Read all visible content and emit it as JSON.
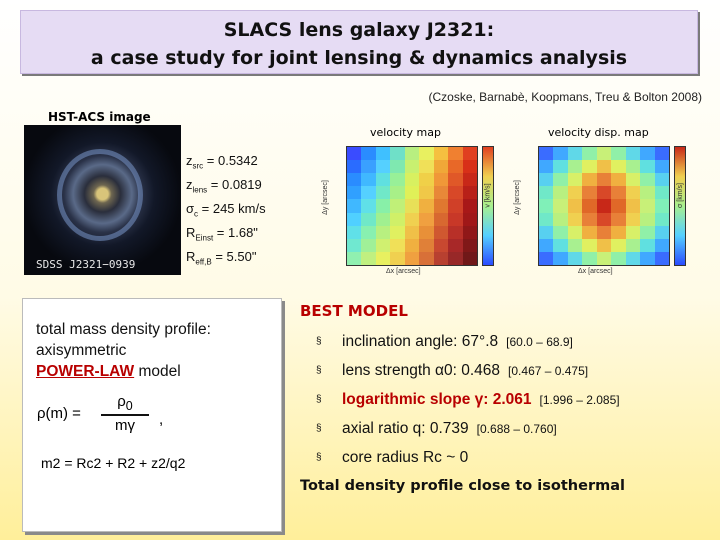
{
  "title": {
    "line1": "SLACS lens galaxy J2321:",
    "line2": "a case study for joint lensing & dynamics analysis"
  },
  "citation": "(Czoske, Barnabè, Koopmans, Treu & Bolton 2008)",
  "hst_label": "HST-ACS image",
  "galaxy_caption": "SDSS  J2321−0939",
  "params": {
    "z_src": "z",
    "z_src_sub": "src",
    "z_src_val": " = 0.5342",
    "z_lens": "z",
    "z_lens_sub": "lens",
    "z_lens_val": " = 0.0819",
    "sigma": "σ",
    "sigma_sub": "c",
    "sigma_val": "  = 245 km/s",
    "reinst": "R",
    "reinst_sub": "Einst",
    "reinst_val": " = 1.68\"",
    "reff": "R",
    "reff_sub": "eff,B",
    "reff_val": " = 5.50\""
  },
  "maps": {
    "velocity_title": "velocity map",
    "dispersion_title": "velocity disp. map",
    "x_axis_label": "Δx [arcsec]",
    "y_axis_label": "Δy [arcsec]",
    "cbar_label_velocity": "v [km/s]",
    "cbar_label_dispersion": "σ [km/s]"
  },
  "profile": {
    "line1": "total mass density profile:",
    "line2": "axisymmetric",
    "power_law": "POWER-LAW",
    "model": " model",
    "rho_m": "ρ(m) =",
    "rho0": "ρ",
    "rho0_sub": "0",
    "m_gamma": "mγ",
    "comma": ",",
    "m2_eq": "m2 = Rc2 + R2 + z2/q2"
  },
  "best_model": {
    "title": "BEST MODEL",
    "items": [
      {
        "label": "inclination angle: 67°.8",
        "range": "[60.0 – 68.9]"
      },
      {
        "label": "lens strength α0: 0.468",
        "range": "[0.467 – 0.475]"
      },
      {
        "label": "logarithmic slope γ: 2.061",
        "range": "[1.996 – 2.085]"
      },
      {
        "label": "axial ratio q: 0.739",
        "range": "[0.688 – 0.760]"
      },
      {
        "label": "core radius Rc ~ 0",
        "range": ""
      }
    ],
    "bullet": "§"
  },
  "conclusion": "Total density profile close to isothermal",
  "colors": {
    "accent_red": "#b80000",
    "title_box": "#e6dcf4"
  },
  "velocity_grid": [
    [
      "#3a4cff",
      "#2a8cff",
      "#3fc0ff",
      "#6fe0c8",
      "#b8ef80",
      "#e8f060",
      "#f5c040",
      "#f08030",
      "#e04020"
    ],
    [
      "#2a6cff",
      "#3aa0ff",
      "#55d0ff",
      "#7fe8b0",
      "#c8f070",
      "#f0e058",
      "#f0a838",
      "#e86828",
      "#d83018"
    ],
    [
      "#2a8cff",
      "#40b8ff",
      "#60e0e0",
      "#98f098",
      "#d8f060",
      "#f0d048",
      "#f09838",
      "#e05828",
      "#c82818"
    ],
    [
      "#30a0ff",
      "#55d0ff",
      "#70e8c8",
      "#a8f088",
      "#e0f058",
      "#f0c848",
      "#e88838",
      "#d84828",
      "#b82018"
    ],
    [
      "#40b8ff",
      "#60e0e8",
      "#88f0a8",
      "#c0f078",
      "#e8e058",
      "#f0b040",
      "#e07830",
      "#d04028",
      "#a81818"
    ],
    [
      "#50d0ff",
      "#70e8c8",
      "#a0f090",
      "#d0f068",
      "#f0d050",
      "#f0a040",
      "#d86830",
      "#c83828",
      "#a01818"
    ],
    [
      "#60e0e8",
      "#88f0b0",
      "#b8f080",
      "#e0f060",
      "#f0c048",
      "#e89038",
      "#d05830",
      "#b83028",
      "#901818"
    ],
    [
      "#70e8d0",
      "#a0f098",
      "#d0f070",
      "#f0e058",
      "#f0b040",
      "#e08038",
      "#c84830",
      "#a82828",
      "#801818"
    ],
    [
      "#90f0b0",
      "#c0f080",
      "#e8f060",
      "#f0d050",
      "#f0a040",
      "#d87038",
      "#b84030",
      "#982828",
      "#701818"
    ]
  ],
  "dispersion_grid": [
    [
      "#3a6cff",
      "#40a8ff",
      "#60d8e8",
      "#90f0a8",
      "#c8f078",
      "#90f0a8",
      "#60d8e8",
      "#40a8ff",
      "#3a6cff"
    ],
    [
      "#40a8ff",
      "#60e0e0",
      "#a8f090",
      "#e0f060",
      "#f0c048",
      "#e0f060",
      "#a8f090",
      "#60e0e0",
      "#40a8ff"
    ],
    [
      "#58d0f0",
      "#90f0a8",
      "#d8f068",
      "#f0b040",
      "#e88038",
      "#f0b040",
      "#d8f068",
      "#90f0a8",
      "#58d0f0"
    ],
    [
      "#70e8c8",
      "#b8f080",
      "#f0d050",
      "#e88038",
      "#d84828",
      "#e88038",
      "#f0d050",
      "#b8f080",
      "#70e8c8"
    ],
    [
      "#80f0b8",
      "#c8f078",
      "#f0c048",
      "#e06828",
      "#c82818",
      "#e06828",
      "#f0c048",
      "#c8f078",
      "#80f0b8"
    ],
    [
      "#70e8c8",
      "#b8f080",
      "#f0d050",
      "#e88038",
      "#d84828",
      "#e88038",
      "#f0d050",
      "#b8f080",
      "#70e8c8"
    ],
    [
      "#58d0f0",
      "#90f0a8",
      "#d8f068",
      "#f0b040",
      "#e88038",
      "#f0b040",
      "#d8f068",
      "#90f0a8",
      "#58d0f0"
    ],
    [
      "#40a8ff",
      "#60e0e0",
      "#a8f090",
      "#e0f060",
      "#f0c048",
      "#e0f060",
      "#a8f090",
      "#60e0e0",
      "#40a8ff"
    ],
    [
      "#3a6cff",
      "#40a8ff",
      "#60d8e8",
      "#90f0a8",
      "#c8f078",
      "#90f0a8",
      "#60d8e8",
      "#40a8ff",
      "#3a6cff"
    ]
  ]
}
